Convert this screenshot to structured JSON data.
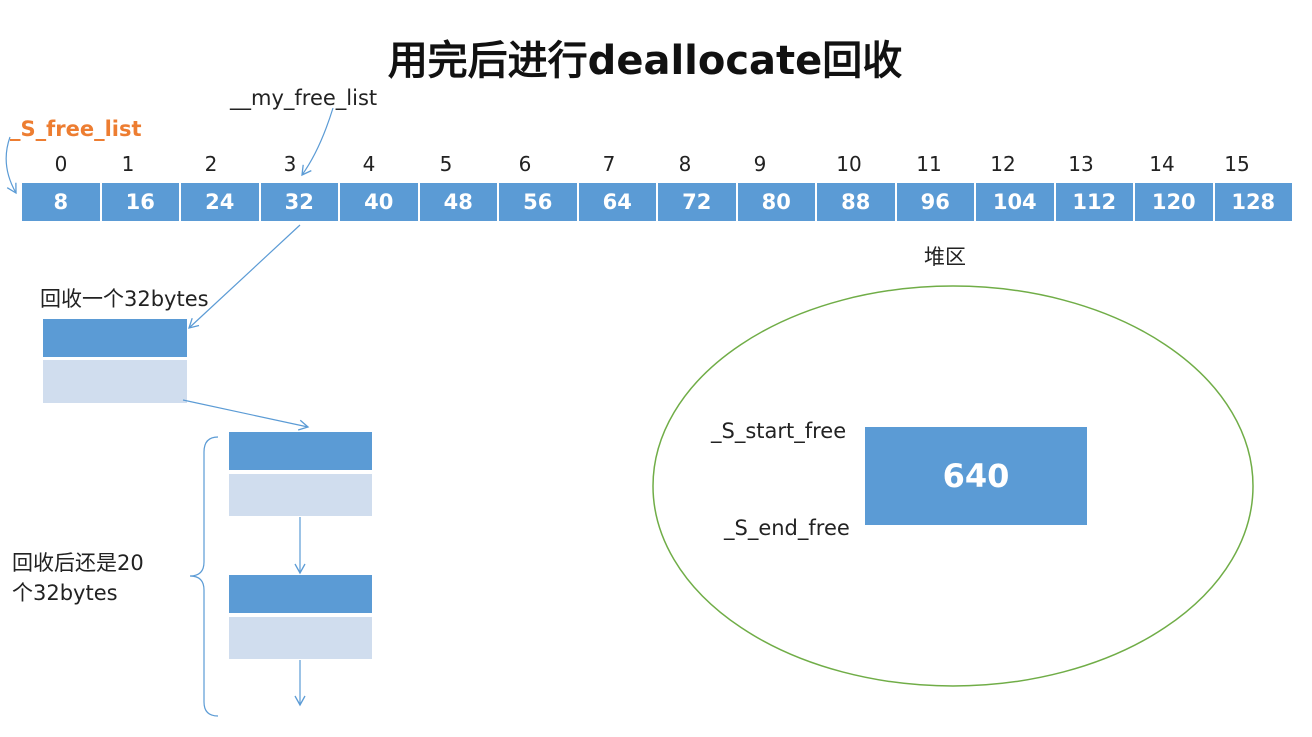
{
  "title": "用完后进行deallocate回收",
  "labels": {
    "my_free_list": "__my_free_list",
    "s_free_list": "_S_free_list",
    "recycle_one": "回收一个32bytes",
    "recycle_after_line1": "回收后还是20",
    "recycle_after_line2": "个32bytes",
    "heap": "堆区",
    "s_start_free": "_S_start_free",
    "s_end_free": "_S_end_free",
    "heap_block": "640"
  },
  "free_list": {
    "indices": [
      "0",
      "1",
      "2",
      "3",
      "4",
      "5",
      "6",
      "7",
      "8",
      "9",
      "10",
      "11",
      "12",
      "13",
      "14",
      "15"
    ],
    "sizes": [
      "8",
      "16",
      "24",
      "32",
      "40",
      "48",
      "56",
      "64",
      "72",
      "80",
      "88",
      "96",
      "104",
      "112",
      "120",
      "128"
    ]
  },
  "colors": {
    "block_blue": "#5B9BD5",
    "block_light": "#D0DDEE",
    "arrow": "#5B9BD5",
    "heap_outline": "#70AD47",
    "highlight": "#ED7D31"
  }
}
